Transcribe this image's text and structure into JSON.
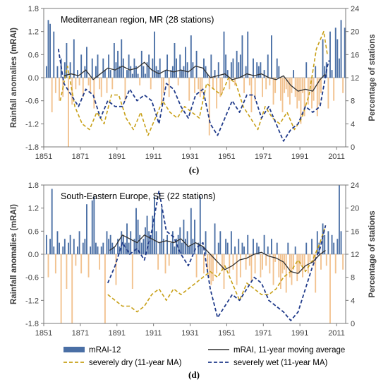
{
  "chart_data": [
    {
      "type": "bar+line",
      "panel_label": "(c)",
      "title": "Mediterranean region, MR (28 stations)",
      "ylabel": "Rainfall anomalies (mRAI)",
      "y2label": "Percentage of stations",
      "xlim": [
        1851,
        2016
      ],
      "ylim": [
        -1.8,
        1.8
      ],
      "y2lim": [
        0,
        24
      ],
      "xticks": [
        "1851",
        "1871",
        "1891",
        "1911",
        "1931",
        "1951",
        "1971",
        "1991",
        "2011"
      ],
      "yticks": [
        "1.8",
        "1.2",
        "0.6",
        "0.0",
        "-0.6",
        "-1.2",
        "-1.8"
      ],
      "y2ticks": [
        "24",
        "20",
        "16",
        "12",
        "8",
        "4",
        "0"
      ],
      "bars_start_year": 1852,
      "bars": [
        0.3,
        1.5,
        1.4,
        -0.9,
        1.2,
        -0.4,
        0.3,
        -0.6,
        0.5,
        -0.5,
        0.4,
        0.9,
        -1.8,
        0.4,
        -0.7,
        1.0,
        -0.3,
        0.2,
        -0.2,
        0.6,
        -0.5,
        0.3,
        0.8,
        -0.2,
        -0.4,
        0.5,
        -0.8,
        0.3,
        0.6,
        -0.3,
        -0.5,
        0.5,
        0.2,
        -0.4,
        0.6,
        0.2,
        -0.3,
        0.9,
        0.4,
        0.7,
        0.3,
        1.0,
        0.5,
        -0.6,
        0.2,
        0.6,
        0.3,
        0.1,
        0.5,
        0.3,
        0.1,
        -0.2,
        0.7,
        0.3,
        0.1,
        0.4,
        0.6,
        -0.3,
        0.5,
        1.2,
        0.3,
        0.2,
        0.5,
        -0.7,
        -0.4,
        0.2,
        0.6,
        -0.5,
        0.2,
        0.3,
        0.9,
        0.5,
        -0.2,
        0.6,
        0.2,
        0.3,
        0.8,
        0.4,
        -0.6,
        1.1,
        0.4,
        -0.4,
        0.7,
        -0.3,
        -0.5,
        -0.4,
        0.5,
        0.3,
        0.1,
        -1.5,
        0.6,
        -0.3,
        0.2,
        -0.8,
        0.4,
        -0.5,
        -0.4,
        1.2,
        0.6,
        0.2,
        -0.3,
        0.4,
        0.5,
        -0.2,
        0.7,
        0.4,
        0.6,
        1.1,
        -0.4,
        0.3,
        1.2,
        -0.2,
        -0.9,
        0.5,
        -0.6,
        0.4,
        0.3,
        0.4,
        -0.5,
        0.2,
        -0.3,
        0.6,
        -0.2,
        1.1,
        -0.7,
        -0.4,
        0.5,
        0.3,
        -0.6,
        -0.9,
        -0.4,
        -0.3,
        -0.5,
        -0.7,
        -0.4,
        0.2,
        -0.5,
        -0.8,
        -0.6,
        -1.2,
        -0.4,
        -1.0,
        0.4,
        -0.7,
        -0.3,
        -0.8,
        -0.6,
        0.3,
        -1.0,
        -0.7,
        -0.4,
        1.0,
        0.3,
        0.4,
        -0.8,
        1.2,
        0.2,
        -0.6,
        1.3,
        1.0,
        0.5,
        1.5,
        -0.4,
        1.3
      ],
      "mra_ma": {
        "years": [
          1862,
          1866,
          1870,
          1874,
          1878,
          1882,
          1886,
          1890,
          1894,
          1898,
          1902,
          1906,
          1910,
          1914,
          1918,
          1922,
          1926,
          1930,
          1934,
          1938,
          1942,
          1946,
          1950,
          1954,
          1958,
          1962,
          1966,
          1970,
          1974,
          1978,
          1982,
          1986,
          1990,
          1994,
          1998,
          2002,
          2005
        ],
        "values": [
          0.05,
          0.1,
          0.05,
          0.2,
          -0.05,
          0.1,
          0.25,
          0.2,
          0.3,
          0.2,
          0.25,
          0.4,
          0.2,
          0.1,
          0.2,
          0.15,
          0.2,
          0.15,
          0.3,
          0.25,
          0.0,
          0.05,
          0.1,
          -0.05,
          0.0,
          0.1,
          0.05,
          0.1,
          0.0,
          -0.05,
          0.05,
          -0.2,
          -0.35,
          -0.3,
          -0.35,
          -0.05,
          0.1
        ]
      },
      "severely_dry_ma": {
        "years": [
          1860,
          1864,
          1868,
          1872,
          1876,
          1880,
          1884,
          1888,
          1892,
          1896,
          1900,
          1904,
          1908,
          1912,
          1916,
          1920,
          1924,
          1928,
          1932,
          1936,
          1940,
          1944,
          1948,
          1952,
          1956,
          1960,
          1964,
          1968,
          1972,
          1976,
          1980,
          1984,
          1988,
          1992,
          1996,
          2000,
          2004,
          2006
        ],
        "values": [
          8,
          14,
          7,
          4,
          3,
          6,
          4,
          9,
          9,
          5,
          3,
          6,
          2,
          5,
          8,
          6,
          5,
          7,
          6,
          5,
          11,
          10,
          9,
          12,
          11,
          7,
          5,
          3,
          7,
          5,
          4,
          6,
          3,
          5,
          9,
          17,
          20,
          16
        ]
      },
      "severely_wet_ma": {
        "years": [
          1859,
          1862,
          1866,
          1870,
          1874,
          1878,
          1882,
          1886,
          1890,
          1894,
          1898,
          1902,
          1906,
          1910,
          1914,
          1918,
          1922,
          1926,
          1930,
          1934,
          1938,
          1942,
          1946,
          1950,
          1954,
          1958,
          1962,
          1966,
          1970,
          1974,
          1978,
          1982,
          1986,
          1990,
          1994,
          1998,
          2002,
          2006,
          2007
        ],
        "values": [
          17,
          11,
          9,
          7,
          10,
          9,
          5,
          8,
          7,
          7,
          10,
          8,
          9,
          8,
          4,
          11,
          10,
          7,
          5,
          9,
          10,
          4,
          2,
          5,
          8,
          6,
          9,
          9,
          5,
          7,
          4,
          1,
          3,
          4,
          7,
          6,
          7,
          14,
          15
        ]
      },
      "colors": {
        "bars_pos": "#4a6fa5",
        "bars_neg": "#f2c28f",
        "ma": "#303030",
        "dry": "#c8a018",
        "wet": "#1f3a8a"
      }
    },
    {
      "type": "bar+line",
      "panel_label": "(d)",
      "title": "South-Eastern Europe, SE (22 stations)",
      "ylabel": "Rainfall anomalies (mRAI)",
      "y2label": "Percentage of stations",
      "xlim": [
        1851,
        2016
      ],
      "ylim": [
        -1.8,
        1.8
      ],
      "y2lim": [
        0,
        24
      ],
      "xticks": [
        "1851",
        "1871",
        "1891",
        "1911",
        "1931",
        "1951",
        "1971",
        "1991",
        "2011"
      ],
      "yticks": [
        "1.8",
        "1.2",
        "0.6",
        "0.0",
        "-0.6",
        "-1.2",
        "-1.8"
      ],
      "y2ticks": [
        "24",
        "20",
        "16",
        "12",
        "8",
        "4",
        "0"
      ],
      "bars_start_year": 1852,
      "bars": [
        0.5,
        -0.6,
        0.4,
        1.7,
        0.2,
        -0.5,
        0.6,
        0.3,
        -1.8,
        0.2,
        0.4,
        -0.9,
        0.3,
        0.5,
        -1.8,
        0.4,
        -0.3,
        0.2,
        0.6,
        -0.5,
        0.3,
        0.4,
        1.3,
        -0.6,
        0.2,
        1.4,
        1.5,
        0.3,
        0.2,
        -0.4,
        0.2,
        0.3,
        -1.8,
        0.6,
        0.4,
        0.5,
        0.3,
        0.2,
        -0.8,
        0.4,
        0.2,
        0.6,
        0.5,
        0.3,
        0.8,
        0.3,
        0.6,
        -0.9,
        0.4,
        1.2,
        0.9,
        0.5,
        0.3,
        0.4,
        0.7,
        1.0,
        0.6,
        0.5,
        1.0,
        1.5,
        0.6,
        -0.4,
        0.3,
        1.2,
        0.4,
        -0.5,
        0.5,
        -0.3,
        0.3,
        0.6,
        0.2,
        0.4,
        0.5,
        0.7,
        0.3,
        0.9,
        0.4,
        0.6,
        0.2,
        1.2,
        0.4,
        0.9,
        -0.6,
        0.3,
        1.5,
        0.2,
        -0.5,
        0.6,
        -0.4,
        -0.6,
        -0.8,
        -0.7,
        0.8,
        -0.5,
        0.3,
        0.6,
        -0.4,
        -0.9,
        0.4,
        0.3,
        -0.5,
        0.6,
        -0.4,
        0.2,
        -0.8,
        0.4,
        -0.6,
        0.3,
        0.2,
        -0.4,
        0.5,
        -0.3,
        -0.7,
        0.4,
        -0.5,
        0.3,
        0.2,
        -0.6,
        -0.4,
        0.5,
        -0.3,
        0.2,
        -0.5,
        0.4,
        -0.8,
        -0.2,
        0.3,
        -0.6,
        -0.9,
        -0.5,
        -0.4,
        -1.0,
        0.3,
        -0.6,
        -0.8,
        -0.4,
        0.2,
        -0.7,
        -0.5,
        -0.3,
        -0.6,
        -0.4,
        0.3,
        -0.5,
        -0.2,
        0.4,
        -0.3,
        -1.0,
        0.6,
        0.3,
        -0.4,
        0.8,
        0.5,
        -0.3,
        0.6,
        -1.8,
        0.5,
        0.3,
        -0.5,
        0.4,
        1.8,
        0.6,
        -0.4
      ],
      "mra_ma": {
        "years": [
          1887,
          1890,
          1894,
          1898,
          1902,
          1906,
          1910,
          1914,
          1918,
          1922,
          1926,
          1930,
          1934,
          1938,
          1942,
          1946,
          1950,
          1954,
          1958,
          1962,
          1966,
          1970,
          1974,
          1978,
          1982,
          1986,
          1990,
          1994,
          1998,
          2002,
          2005
        ],
        "values": [
          0.1,
          0.2,
          0.5,
          0.4,
          0.3,
          0.5,
          0.4,
          0.3,
          0.35,
          0.3,
          0.4,
          0.2,
          0.3,
          0.2,
          0.0,
          -0.2,
          -0.4,
          -0.3,
          -0.15,
          -0.1,
          0.0,
          0.05,
          -0.05,
          -0.1,
          -0.2,
          -0.45,
          -0.5,
          -0.3,
          -0.2,
          0.0,
          0.1
        ]
      },
      "severely_dry_ma": {
        "years": [
          1886,
          1890,
          1894,
          1898,
          1902,
          1906,
          1910,
          1914,
          1918,
          1922,
          1926,
          1930,
          1934,
          1938,
          1942,
          1946,
          1950,
          1954,
          1958,
          1962,
          1966,
          1970,
          1974,
          1978,
          1982,
          1986,
          1990,
          1994,
          1998,
          2002,
          2005
        ],
        "values": [
          5,
          4,
          3,
          3,
          2,
          3,
          5,
          6,
          4,
          6,
          5,
          6,
          7,
          8,
          9,
          8,
          10,
          7,
          4,
          7,
          6,
          5,
          5,
          6,
          8,
          9,
          11,
          9,
          11,
          14,
          17
        ]
      },
      "severely_wet_ma": {
        "years": [
          1886,
          1890,
          1894,
          1898,
          1902,
          1906,
          1910,
          1914,
          1918,
          1922,
          1926,
          1930,
          1934,
          1938,
          1942,
          1946,
          1950,
          1954,
          1958,
          1962,
          1966,
          1970,
          1974,
          1978,
          1982,
          1986,
          1990,
          1994,
          1998,
          2002,
          2005
        ],
        "values": [
          7,
          10,
          14,
          12,
          13,
          11,
          16,
          23,
          16,
          15,
          12,
          10,
          13,
          14,
          6,
          1,
          3,
          5,
          4,
          6,
          8,
          7,
          4,
          3,
          2,
          0.5,
          2,
          6,
          10,
          13,
          17
        ]
      },
      "colors": {
        "bars_pos": "#4a6fa5",
        "bars_neg": "#f2c28f",
        "ma": "#303030",
        "dry": "#c8a018",
        "wet": "#1f3a8a"
      }
    }
  ],
  "legend": {
    "items": [
      {
        "label": "mRAI-12",
        "kind": "bar",
        "color": "#4a6fa5"
      },
      {
        "label": "mRAI, 11-year moving average",
        "kind": "line",
        "color": "#303030"
      },
      {
        "label": "severely dry (11-year MA)",
        "kind": "dash",
        "color": "#c8a018"
      },
      {
        "label": "severely wet (11-year MA)",
        "kind": "dash",
        "color": "#1f3a8a"
      }
    ]
  }
}
